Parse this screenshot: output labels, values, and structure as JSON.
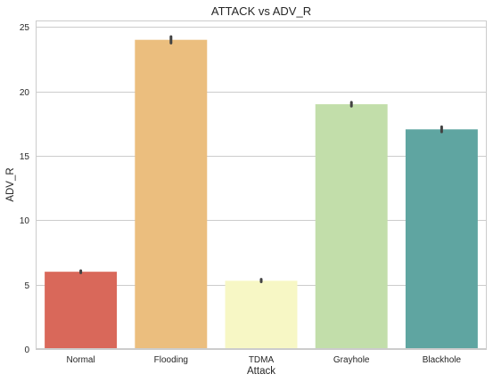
{
  "chart_data": {
    "type": "bar",
    "title": "ATTACK vs ADV_R",
    "xlabel": "Attack",
    "ylabel": "ADV_R",
    "categories": [
      "Normal",
      "Flooding",
      "TDMA",
      "Grayhole",
      "Blackhole"
    ],
    "values": [
      6.0,
      24.0,
      5.3,
      19.0,
      17.05
    ],
    "error_low": [
      5.92,
      23.75,
      5.22,
      18.85,
      16.85
    ],
    "error_high": [
      6.08,
      24.25,
      5.42,
      19.15,
      17.25
    ],
    "colors": [
      "#d9685a",
      "#ebbe7e",
      "#f7f7c5",
      "#c2deaa",
      "#5fa5a1"
    ],
    "ylim": [
      0,
      25.5
    ],
    "yticks": [
      0,
      5,
      10,
      15,
      20,
      25
    ],
    "grid": "horizontal",
    "legend": "none"
  }
}
